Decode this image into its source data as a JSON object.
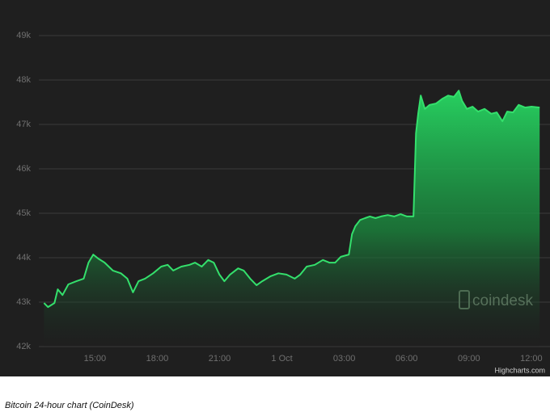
{
  "chart_data": {
    "type": "area",
    "color": "#34e06c",
    "x": [
      12.55,
      12.74,
      13.05,
      13.21,
      13.44,
      13.72,
      14.11,
      14.46,
      14.69,
      14.92,
      15.16,
      15.47,
      15.86,
      16.25,
      16.56,
      16.83,
      17.1,
      17.41,
      17.8,
      18.19,
      18.5,
      18.77,
      19.16,
      19.55,
      19.82,
      20.14,
      20.45,
      20.72,
      20.99,
      21.23,
      21.5,
      21.89,
      22.16,
      22.47,
      22.78,
      23.05,
      23.44,
      23.83,
      24.22,
      24.61,
      24.88,
      25.19,
      25.58,
      25.97,
      26.28,
      26.56,
      26.83,
      27.22,
      27.37,
      27.53,
      27.76,
      28.0,
      28.23,
      28.5,
      28.77,
      29.09,
      29.4,
      29.71,
      30.02,
      30.33,
      30.45,
      30.56,
      30.68,
      30.88,
      31.11,
      31.42,
      31.73,
      32.0,
      32.28,
      32.51,
      32.67,
      32.9,
      33.17,
      33.44,
      33.75,
      34.07,
      34.34,
      34.61,
      34.84,
      35.12,
      35.39,
      35.7,
      36.01,
      36.4
    ],
    "values": [
      42980,
      42890,
      42980,
      43290,
      43160,
      43400,
      43470,
      43530,
      43890,
      44070,
      43980,
      43890,
      43710,
      43650,
      43530,
      43220,
      43470,
      43530,
      43650,
      43800,
      43840,
      43710,
      43800,
      43840,
      43890,
      43800,
      43950,
      43890,
      43620,
      43470,
      43620,
      43760,
      43710,
      43530,
      43380,
      43470,
      43580,
      43650,
      43620,
      43530,
      43620,
      43800,
      43840,
      43950,
      43890,
      43890,
      44020,
      44070,
      44530,
      44710,
      44850,
      44890,
      44930,
      44890,
      44930,
      44960,
      44930,
      44980,
      44930,
      44930,
      46800,
      47250,
      47650,
      47350,
      47440,
      47470,
      47580,
      47650,
      47620,
      47760,
      47530,
      47350,
      47400,
      47290,
      47350,
      47240,
      47270,
      47070,
      47290,
      47270,
      47440,
      47380,
      47400,
      47380
    ],
    "xlim": [
      12.3,
      36.9
    ],
    "xticks": [
      {
        "value": 15,
        "label": "15:00"
      },
      {
        "value": 18,
        "label": "18:00"
      },
      {
        "value": 21,
        "label": "21:00"
      },
      {
        "value": 24,
        "label": "1 Oct"
      },
      {
        "value": 27,
        "label": "03:00"
      },
      {
        "value": 30,
        "label": "06:00"
      },
      {
        "value": 33,
        "label": "09:00"
      },
      {
        "value": 36,
        "label": "12:00"
      }
    ],
    "ylim": [
      42000,
      49000
    ],
    "yticks": [
      {
        "value": 42000,
        "label": "42k"
      },
      {
        "value": 43000,
        "label": "43k"
      },
      {
        "value": 44000,
        "label": "44k"
      },
      {
        "value": 45000,
        "label": "45k"
      },
      {
        "value": 46000,
        "label": "46k"
      },
      {
        "value": 47000,
        "label": "47k"
      },
      {
        "value": 48000,
        "label": "48k"
      },
      {
        "value": 49000,
        "label": "49k"
      }
    ],
    "grid": true,
    "watermark": "coindesk",
    "credits": "Highcharts.com"
  },
  "caption": "Bitcoin 24-hour chart (CoinDesk)"
}
